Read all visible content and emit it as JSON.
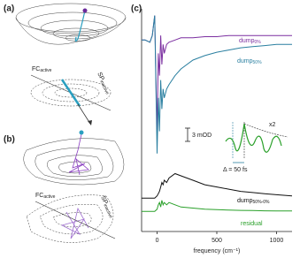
{
  "panels": {
    "a": "(a)",
    "b": "(b)",
    "c": "(c)"
  },
  "surface_labels": {
    "a_fc": {
      "main": "FC",
      "sub": "active"
    },
    "a_sp": {
      "main": "SP",
      "sub": "inactive"
    },
    "b_fc": {
      "main": "FC",
      "sub": "active"
    },
    "b_sp": {
      "main": "SP",
      "sub": "inactive"
    }
  },
  "inset": {
    "scale": "3 mOD",
    "factor": "x2",
    "delay": "Δ = 50 fs"
  },
  "chart_data": {
    "type": "line",
    "xlabel": "frequency (cm⁻¹)",
    "x": [
      -130,
      -100,
      -60,
      -40,
      -20,
      0,
      10,
      20,
      30,
      40,
      50,
      60,
      80,
      100,
      150,
      200,
      300,
      400,
      500,
      600,
      700,
      800,
      900,
      1000,
      1130
    ],
    "xlim": [
      -130,
      1130
    ],
    "xticks": [
      0,
      500,
      1000
    ],
    "ylim": [
      0,
      100
    ],
    "series": [
      {
        "name": "dump",
        "subscript": "0%",
        "color": "#7b2fa0",
        "values": [
          86,
          86,
          85,
          88,
          97,
          44,
          80,
          70,
          88,
          75,
          84,
          80,
          84,
          85,
          86,
          87,
          87,
          87.5,
          87.5,
          88,
          88,
          88,
          88,
          88,
          88
        ]
      },
      {
        "name": "dump",
        "subscript": "50%",
        "color": "#2a7fa0",
        "values": [
          86,
          86,
          85,
          88,
          97,
          35,
          60,
          45,
          68,
          55,
          64,
          60,
          64,
          66,
          70,
          73,
          77,
          79,
          80.5,
          81.5,
          82.5,
          83,
          83.5,
          84,
          84
        ]
      },
      {
        "name": "dump",
        "subscript": "50%-0%",
        "color": "#111111",
        "values": [
          15,
          15,
          15,
          15,
          15,
          16,
          17,
          18,
          20,
          22,
          21,
          23,
          22,
          24,
          26,
          25,
          23,
          21,
          20,
          19,
          18,
          17.5,
          17,
          16.5,
          16
        ]
      },
      {
        "name": "residual",
        "color": "#2aa02a",
        "values": [
          9,
          9,
          9,
          9,
          9,
          10,
          12,
          13,
          11,
          14,
          12,
          13,
          12,
          13,
          12,
          11,
          10.5,
          10,
          9.8,
          9.6,
          9.5,
          9.4,
          9.3,
          9.2,
          9.2
        ]
      }
    ]
  }
}
